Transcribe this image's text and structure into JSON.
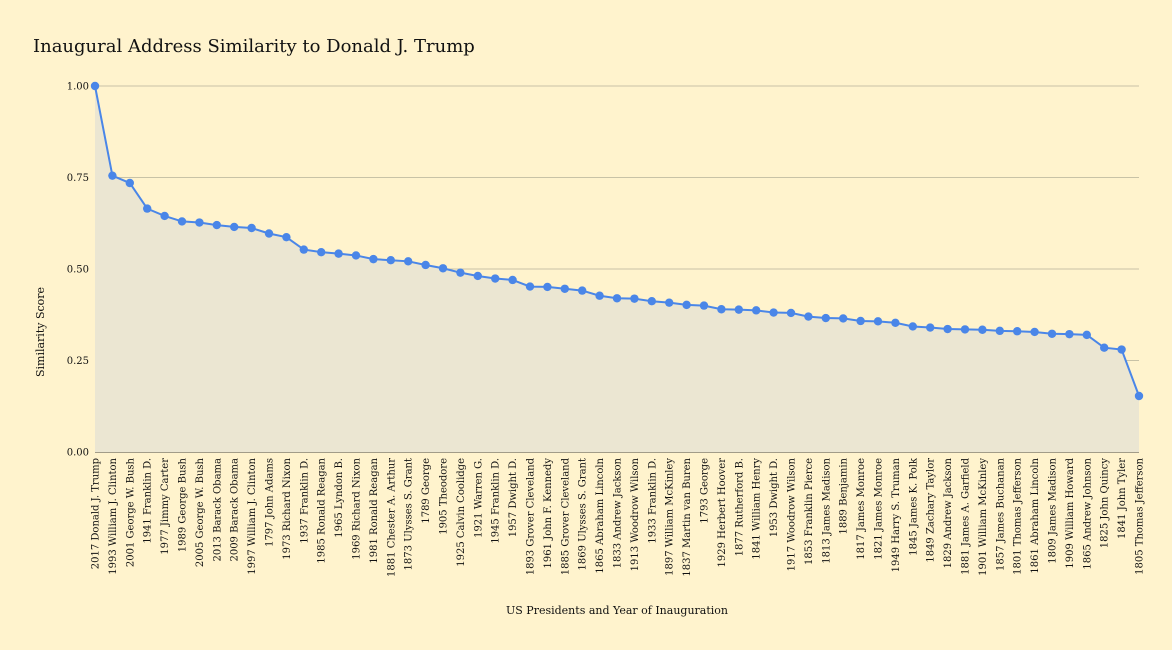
{
  "chart_data": {
    "type": "area",
    "title": "Inaugural Address Similarity to Donald J. Trump",
    "xlabel": "US Presidents and Year of Inauguration",
    "ylabel": "Similarity Score",
    "ylim": [
      0,
      1
    ],
    "y_ticks": [
      "0.00",
      "0.25",
      "0.50",
      "0.75",
      "1.00"
    ],
    "grid": true,
    "colors": {
      "line": "#4a86e8",
      "fill": "#ebe6d2",
      "background": "#fff3cd",
      "grid": "#c8c2a6"
    },
    "categories": [
      "2017 Donald J. Trump",
      "1993 William J. Clinton",
      "2001 George W. Bush",
      "1941 Franklin D.",
      "1977 Jimmy Carter",
      "1989 George Bush",
      "2005 George W. Bush",
      "2013 Barack Obama",
      "2009 Barack Obama",
      "1997 William J. Clinton",
      "1797 John Adams",
      "1973 Richard Nixon",
      "1937 Franklin D.",
      "1985 Ronald Reagan",
      "1965 Lyndon B.",
      "1969 Richard Nixon",
      "1981 Ronald Reagan",
      "1881 Chester A. Arthur",
      "1873 Ulysses S. Grant",
      "1789 George",
      "1905 Theodore",
      "1925 Calvin Coolidge",
      "1921 Warren G.",
      "1945 Franklin D.",
      "1957 Dwight D.",
      "1893 Grover Cleveland",
      "1961 John F. Kennedy",
      "1885 Grover Cleveland",
      "1869 Ulysses S. Grant",
      "1865 Abraham Lincoln",
      "1833 Andrew Jackson",
      "1913 Woodrow Wilson",
      "1933 Franklin D.",
      "1897 William McKinley",
      "1837 Martin van Buren",
      "1793 George",
      "1929 Herbert Hoover",
      "1877 Rutherford B.",
      "1841 William Henry",
      "1953 Dwight D.",
      "1917 Woodrow Wilson",
      "1853 Franklin Pierce",
      "1813 James Madison",
      "1889 Benjamin",
      "1817 James Monroe",
      "1821 James Monroe",
      "1949 Harry S. Truman",
      "1845 James K. Polk",
      "1849 Zachary Taylor",
      "1829 Andrew Jackson",
      "1881 James A. Garfield",
      "1901 William McKinley",
      "1857 James Buchanan",
      "1801 Thomas Jefferson",
      "1861 Abraham Lincoln",
      "1809 James Madison",
      "1909 William Howard",
      "1865 Andrew Johnson",
      "1825 John Quincy",
      "1841 John Tyler",
      "1805 Thomas Jefferson"
    ],
    "series": [
      {
        "values": [
          1.0,
          0.755,
          0.735,
          0.665,
          0.645,
          0.63,
          0.627,
          0.62,
          0.615,
          0.612,
          0.597,
          0.587,
          0.553,
          0.546,
          0.542,
          0.537,
          0.527,
          0.524,
          0.521,
          0.511,
          0.502,
          0.49,
          0.481,
          0.474,
          0.47,
          0.452,
          0.451,
          0.446,
          0.441,
          0.427,
          0.42,
          0.419,
          0.412,
          0.408,
          0.402,
          0.4,
          0.39,
          0.389,
          0.387,
          0.381,
          0.38,
          0.37,
          0.366,
          0.365,
          0.358,
          0.357,
          0.353,
          0.343,
          0.34,
          0.336,
          0.335,
          0.334,
          0.331,
          0.33,
          0.328,
          0.323,
          0.322,
          0.32,
          0.285,
          0.28,
          0.153
        ]
      }
    ]
  }
}
